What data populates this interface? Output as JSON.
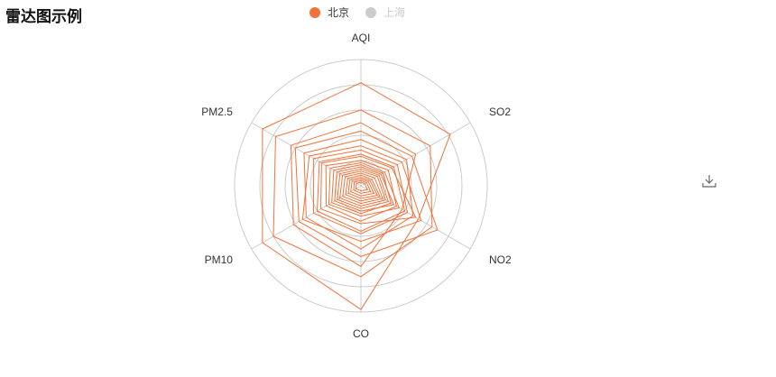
{
  "chart_data": {
    "type": "radar",
    "title": "雷达图示例",
    "indicators": [
      {
        "name": "AQI",
        "max": 300
      },
      {
        "name": "SO2",
        "max": 120
      },
      {
        "name": "NO2",
        "max": 200
      },
      {
        "name": "CO",
        "max": 5
      },
      {
        "name": "PM10",
        "max": 300
      },
      {
        "name": "PM2.5",
        "max": 250
      }
    ],
    "legend": [
      {
        "name": "北京",
        "color": "#f0733a",
        "active": true
      },
      {
        "name": "上海",
        "color": "#cccccc",
        "active": false
      }
    ],
    "series": [
      {
        "name": "北京",
        "color": "#f0733a",
        "values": [
          [
            245,
            98,
            105,
            4.9,
            270,
            225
          ],
          [
            180,
            76,
            130,
            3.6,
            240,
            195
          ],
          [
            150,
            60,
            75,
            3.2,
            185,
            160
          ],
          [
            130,
            56,
            140,
            2.8,
            170,
            150
          ],
          [
            110,
            50,
            95,
            2.5,
            150,
            130
          ],
          [
            95,
            45,
            110,
            2.2,
            160,
            118
          ],
          [
            85,
            40,
            85,
            1.9,
            130,
            108
          ],
          [
            75,
            36,
            80,
            1.8,
            120,
            95
          ],
          [
            70,
            34,
            100,
            1.5,
            110,
            90
          ],
          [
            60,
            30,
            65,
            1.4,
            95,
            80
          ],
          [
            55,
            26,
            70,
            1.2,
            88,
            70
          ],
          [
            50,
            24,
            55,
            1.1,
            80,
            62
          ],
          [
            45,
            22,
            60,
            1.0,
            72,
            55
          ],
          [
            40,
            20,
            50,
            0.9,
            65,
            48
          ],
          [
            35,
            18,
            45,
            0.8,
            58,
            42
          ],
          [
            30,
            15,
            40,
            0.7,
            50,
            36
          ],
          [
            25,
            12,
            35,
            0.6,
            42,
            30
          ],
          [
            20,
            10,
            30,
            0.5,
            35,
            25
          ],
          [
            16,
            8,
            24,
            0.4,
            28,
            20
          ],
          [
            12,
            6,
            18,
            0.3,
            20,
            15
          ],
          [
            8,
            4,
            12,
            0.2,
            14,
            10
          ]
        ]
      }
    ],
    "grid_rings": 5
  },
  "toolbox": {
    "download_icon": "download-icon"
  }
}
